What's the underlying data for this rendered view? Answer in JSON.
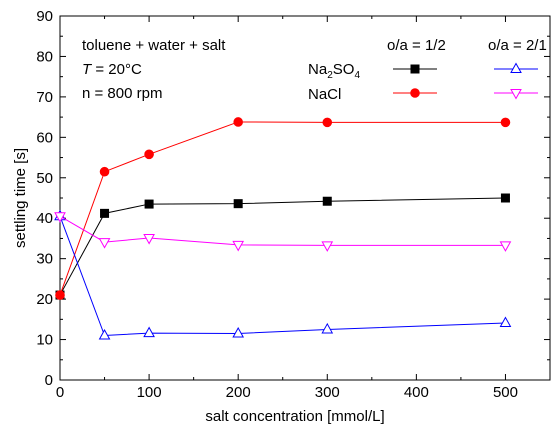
{
  "chart_data": {
    "type": "line",
    "xlabel": "salt concentration [mmol/L]",
    "ylabel": "settling time [s]",
    "xlim": [
      0,
      550
    ],
    "ylim": [
      0,
      90
    ],
    "xticks": [
      0,
      100,
      200,
      300,
      400,
      500
    ],
    "yticks": [
      0,
      10,
      20,
      30,
      40,
      50,
      60,
      70,
      80,
      90
    ],
    "x": [
      0,
      50,
      100,
      200,
      300,
      500
    ],
    "annotations": {
      "line1": "toluene + water + salt",
      "line2_symbol": "T",
      "line2_rest": " = 20°C",
      "line3": "n = 800 rpm"
    },
    "legend": {
      "col1_header": "o/a = 1/2",
      "col2_header": "o/a = 2/1",
      "row1_prefix": "Na",
      "row1_sub1": "2",
      "row1_mid": "SO",
      "row1_sub2": "4",
      "row2_label": "NaCl"
    },
    "series": [
      {
        "salt": "Na2SO4",
        "oa": "1/2",
        "marker": "square",
        "filled": true,
        "color": "#000000",
        "values": [
          21,
          41.2,
          43.5,
          43.6,
          44.2,
          45
        ]
      },
      {
        "salt": "NaCl",
        "oa": "1/2",
        "marker": "circle",
        "filled": true,
        "color": "#ff0000",
        "values": [
          21,
          51.5,
          55.8,
          63.8,
          63.7,
          63.7
        ]
      },
      {
        "salt": "Na2SO4",
        "oa": "2/1",
        "marker": "triangle-up",
        "filled": false,
        "color": "#0000ff",
        "values": [
          40.5,
          11,
          11.6,
          11.5,
          12.5,
          14.1
        ]
      },
      {
        "salt": "NaCl",
        "oa": "2/1",
        "marker": "triangle-down",
        "filled": false,
        "color": "#ff00ff",
        "values": [
          40.5,
          34.1,
          35.1,
          33.4,
          33.3,
          33.3
        ]
      }
    ]
  }
}
